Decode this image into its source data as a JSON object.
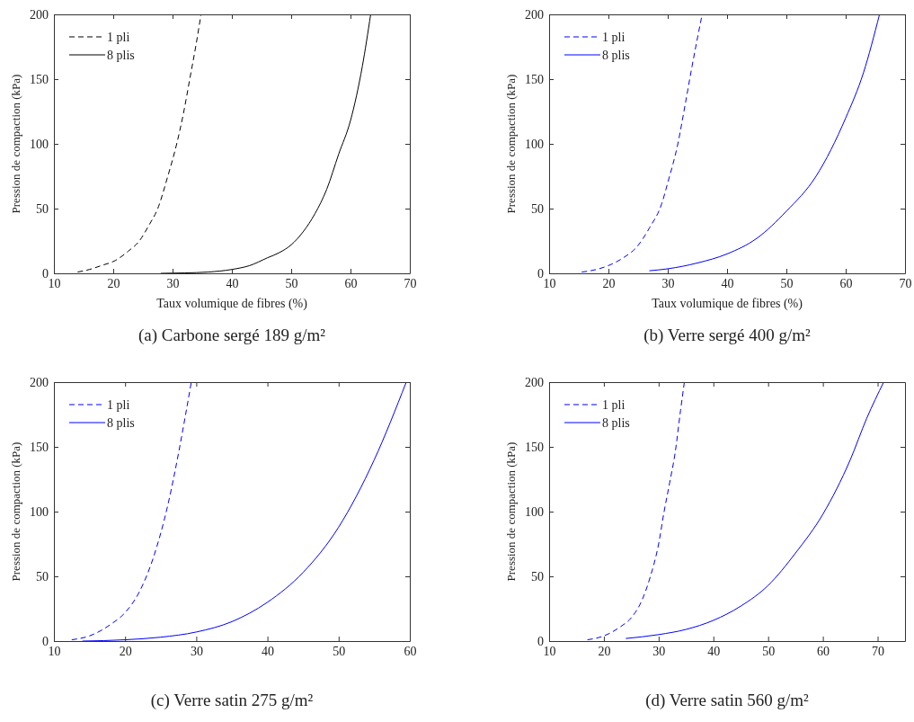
{
  "chart_data": [
    {
      "type": "line",
      "title": "(a) Carbone sergé 189 g/m²",
      "xlabel": "Taux volumique de fibres (%)",
      "ylabel": "Pression de compaction (kPa)",
      "xlim": [
        10,
        70
      ],
      "xticks": [
        10,
        20,
        30,
        40,
        50,
        60,
        70
      ],
      "ylim": [
        0,
        200
      ],
      "yticks": [
        0,
        50,
        100,
        150,
        200
      ],
      "legend": "top left",
      "grid": false,
      "series": [
        {
          "name": "1 pli",
          "color": "#000000",
          "line_style": "dashed",
          "x": [
            14,
            16,
            18,
            20.4,
            22.5,
            24.4,
            26,
            27.5,
            29.2,
            30.7,
            31.9,
            32.9,
            33.9,
            34.8
          ],
          "values": [
            1,
            3,
            6,
            10,
            17,
            25,
            37,
            50,
            75,
            100,
            125,
            150,
            175,
            200
          ]
        },
        {
          "name": "8 plis",
          "color": "#000000",
          "line_style": "solid",
          "x": [
            28,
            32,
            36,
            40,
            43,
            46,
            48,
            50,
            52,
            54,
            56,
            58,
            60,
            62,
            63.4
          ],
          "values": [
            0,
            0.3,
            1,
            3,
            6,
            12,
            16,
            22,
            32,
            46,
            65,
            92,
            118,
            160,
            200
          ]
        }
      ]
    },
    {
      "type": "line",
      "title": "(b) Verre sergé 400 g/m²",
      "xlabel": "Taux volumique de fibres (%)",
      "ylabel": "Pression de compaction (kPa)",
      "xlim": [
        10,
        70
      ],
      "xticks": [
        10,
        20,
        30,
        40,
        50,
        60,
        70
      ],
      "ylim": [
        0,
        200
      ],
      "yticks": [
        0,
        50,
        100,
        150,
        200
      ],
      "legend": "top left",
      "grid": false,
      "series": [
        {
          "name": "1 pli",
          "color": "#0000ff",
          "line_style": "dashed",
          "x": [
            15.5,
            18,
            20,
            22.5,
            24.9,
            26.9,
            29,
            30,
            31.7,
            33,
            34.1,
            35.8
          ],
          "values": [
            1,
            3,
            6,
            12,
            21,
            35,
            54,
            70,
            100,
            132,
            160,
            200
          ]
        },
        {
          "name": "8 plis",
          "color": "#0000ff",
          "line_style": "solid",
          "x": [
            26.9,
            30,
            35,
            40,
            45,
            50,
            55,
            60,
            63,
            65.7
          ],
          "values": [
            2,
            3.5,
            8,
            15,
            27,
            48,
            75,
            120,
            155,
            200
          ]
        }
      ]
    },
    {
      "type": "line",
      "title": "(c) Verre satin 275 g/m²",
      "ylabel": "Pression de compaction (kPa)",
      "xlim": [
        10,
        60
      ],
      "xticks": [
        10,
        20,
        30,
        40,
        50,
        60
      ],
      "ylim": [
        0,
        200
      ],
      "yticks": [
        0,
        50,
        100,
        150,
        200
      ],
      "legend": "top left",
      "grid": false,
      "series": [
        {
          "name": "1 pli",
          "color": "#0000ff",
          "line_style": "dashed",
          "x": [
            12.5,
            15,
            18,
            20,
            22,
            24,
            26,
            27.5,
            28.5,
            29.3
          ],
          "values": [
            1,
            4,
            13,
            22,
            38,
            65,
            105,
            145,
            175,
            200
          ]
        },
        {
          "name": "8 plis",
          "color": "#0000ff",
          "line_style": "solid",
          "x": [
            14,
            20,
            25,
            30,
            35,
            40,
            45,
            50,
            55,
            59.5
          ],
          "values": [
            0,
            1,
            3,
            7,
            15,
            30,
            53,
            88,
            140,
            200
          ]
        }
      ]
    },
    {
      "type": "line",
      "title": "(d) Verre satin 560 g/m²",
      "ylabel": "Pression de compaction (kPa)",
      "xlim": [
        10,
        75
      ],
      "xticks": [
        10,
        20,
        30,
        40,
        50,
        60,
        70
      ],
      "ylim": [
        0,
        200
      ],
      "yticks": [
        0,
        50,
        100,
        150,
        200
      ],
      "legend": "top left",
      "grid": false,
      "series": [
        {
          "name": "1 pli",
          "color": "#0000ff",
          "line_style": "dashed",
          "x": [
            17,
            20,
            23,
            25,
            27,
            28.5,
            30,
            31,
            32,
            33,
            34,
            34.7
          ],
          "values": [
            1,
            4,
            11,
            18,
            32,
            50,
            75,
            100,
            122,
            145,
            178,
            200
          ]
        },
        {
          "name": "8 plis",
          "color": "#0000ff",
          "line_style": "solid",
          "x": [
            24,
            30,
            35,
            40,
            45,
            50,
            55,
            60,
            65,
            68,
            71.1
          ],
          "values": [
            2,
            5,
            9,
            16,
            27,
            43,
            68,
            98,
            140,
            172,
            200
          ]
        }
      ]
    }
  ]
}
